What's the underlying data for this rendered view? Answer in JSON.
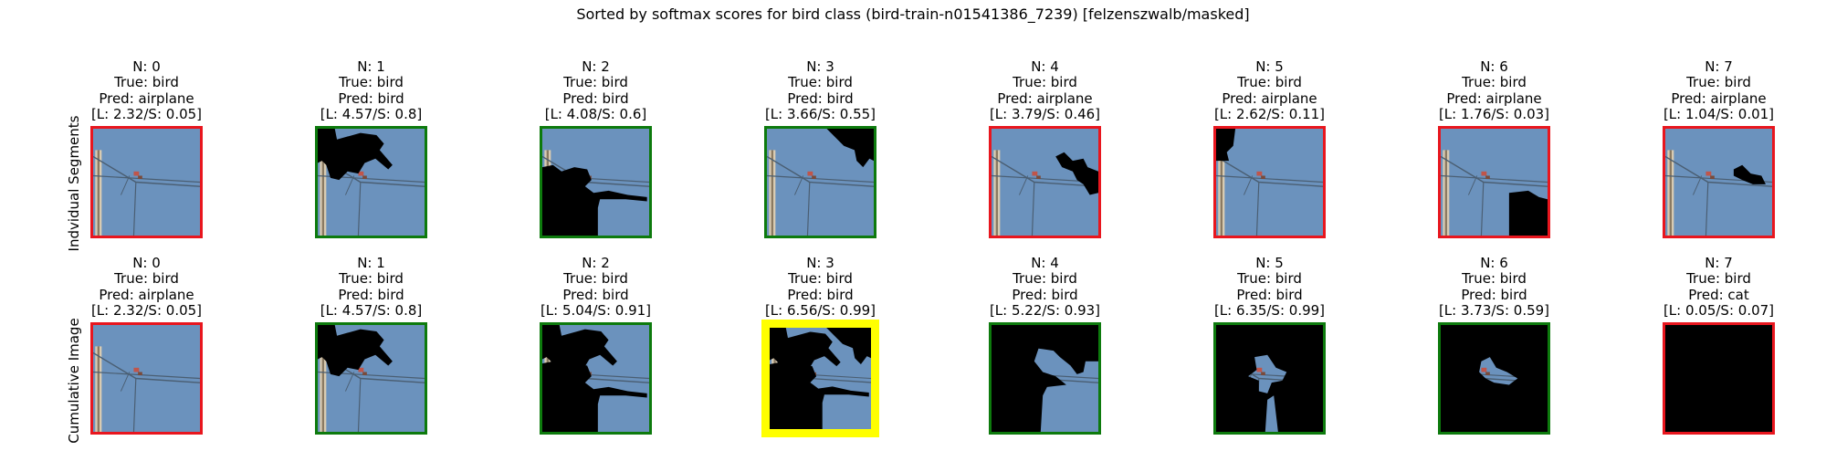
{
  "figure": {
    "title": "Sorted by softmax scores for bird class (bird-train-n01541386_7239) [felzenszwalb/masked]"
  },
  "colors": {
    "sky": "#6b92bd",
    "mask": "#000000",
    "pole": "#d9cbb2",
    "wire": "#4a5e72",
    "bird": "#c0554a",
    "border_wrong": "#e8161e",
    "border_correct": "#0d7a0d",
    "border_best": "#ffff00"
  },
  "rows": [
    {
      "label": "Indvidual Segments",
      "cells": [
        {
          "n": "N: 0",
          "true": "True: bird",
          "pred": "Pred: airplane",
          "scores": "[L: 2.32/S: 0.05]",
          "border": "wrong"
        },
        {
          "n": "N: 1",
          "true": "True: bird",
          "pred": "Pred: bird",
          "scores": "[L: 4.57/S: 0.8]",
          "border": "correct"
        },
        {
          "n": "N: 2",
          "true": "True: bird",
          "pred": "Pred: bird",
          "scores": "[L: 4.08/S: 0.6]",
          "border": "correct"
        },
        {
          "n": "N: 3",
          "true": "True: bird",
          "pred": "Pred: bird",
          "scores": "[L: 3.66/S: 0.55]",
          "border": "correct"
        },
        {
          "n": "N: 4",
          "true": "True: bird",
          "pred": "Pred: airplane",
          "scores": "[L: 3.79/S: 0.46]",
          "border": "wrong"
        },
        {
          "n": "N: 5",
          "true": "True: bird",
          "pred": "Pred: airplane",
          "scores": "[L: 2.62/S: 0.11]",
          "border": "wrong"
        },
        {
          "n": "N: 6",
          "true": "True: bird",
          "pred": "Pred: airplane",
          "scores": "[L: 1.76/S: 0.03]",
          "border": "wrong"
        },
        {
          "n": "N: 7",
          "true": "True: bird",
          "pred": "Pred: airplane",
          "scores": "[L: 1.04/S: 0.01]",
          "border": "wrong"
        }
      ]
    },
    {
      "label": "Cumulative Image",
      "cells": [
        {
          "n": "N: 0",
          "true": "True: bird",
          "pred": "Pred: airplane",
          "scores": "[L: 2.32/S: 0.05]",
          "border": "wrong"
        },
        {
          "n": "N: 1",
          "true": "True: bird",
          "pred": "Pred: bird",
          "scores": "[L: 4.57/S: 0.8]",
          "border": "correct"
        },
        {
          "n": "N: 2",
          "true": "True: bird",
          "pred": "Pred: bird",
          "scores": "[L: 5.04/S: 0.91]",
          "border": "correct"
        },
        {
          "n": "N: 3",
          "true": "True: bird",
          "pred": "Pred: bird",
          "scores": "[L: 6.56/S: 0.99]",
          "border": "best"
        },
        {
          "n": "N: 4",
          "true": "True: bird",
          "pred": "Pred: bird",
          "scores": "[L: 5.22/S: 0.93]",
          "border": "correct"
        },
        {
          "n": "N: 5",
          "true": "True: bird",
          "pred": "Pred: bird",
          "scores": "[L: 6.35/S: 0.99]",
          "border": "correct"
        },
        {
          "n": "N: 6",
          "true": "True: bird",
          "pred": "Pred: bird",
          "scores": "[L: 3.73/S: 0.59]",
          "border": "correct"
        },
        {
          "n": "N: 7",
          "true": "True: bird",
          "pred": "Pred: cat",
          "scores": "[L: 0.05/S: 0.07]",
          "border": "wrong"
        }
      ]
    }
  ]
}
